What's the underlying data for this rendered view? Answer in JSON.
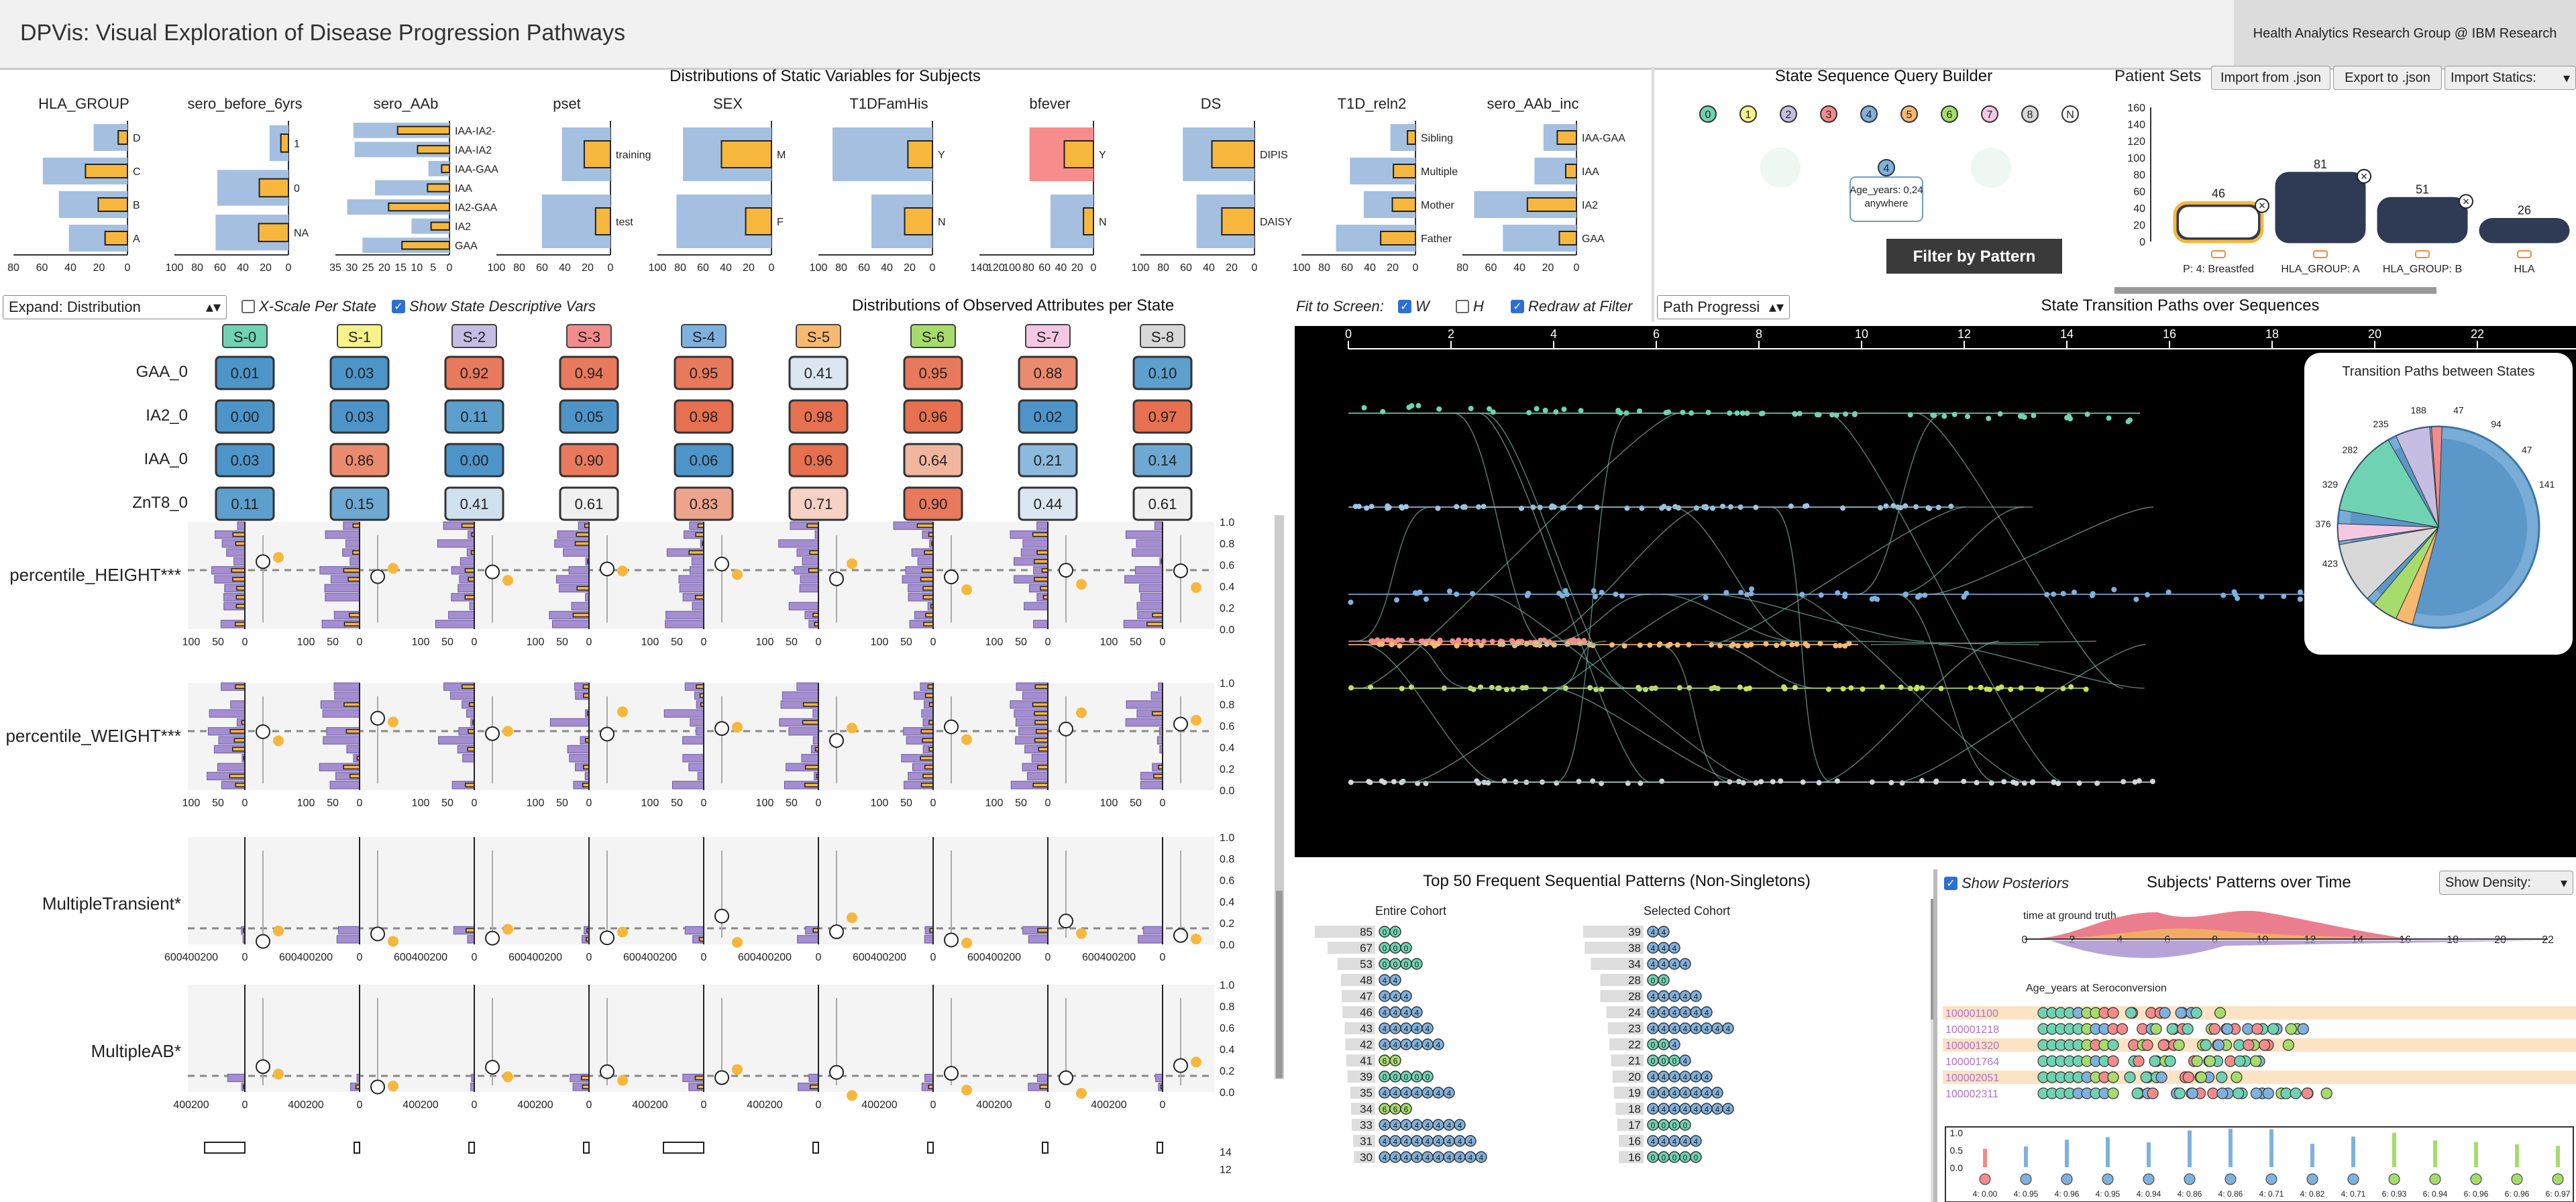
{
  "app": {
    "title": "DPVis: Visual Exploration of Disease Progression Pathways",
    "org": "Health Analytics Research Group @ IBM Research"
  },
  "static_vars": {
    "title": "Distributions of Static Variables for Subjects",
    "vars": [
      {
        "name": "HLA_GROUP",
        "cats": [
          "D",
          "C",
          "B",
          "A"
        ],
        "axis": [
          "80",
          "60",
          "40",
          "20",
          "0"
        ]
      },
      {
        "name": "sero_before_6yrs",
        "cats": [
          "1",
          "0",
          "NA"
        ],
        "axis": [
          "100",
          "80",
          "60",
          "40",
          "20",
          "0"
        ]
      },
      {
        "name": "sero_AAb",
        "cats": [
          "IAA-IA2-",
          "IAA-IA2",
          "IAA-GAA",
          "IAA",
          "IA2-GAA",
          "IA2",
          "GAA"
        ],
        "axis": [
          "35",
          "30",
          "25",
          "20",
          "15",
          "10",
          "5",
          "0"
        ]
      },
      {
        "name": "pset",
        "cats": [
          "training",
          "test"
        ],
        "axis": [
          "100",
          "80",
          "60",
          "40",
          "20",
          "0"
        ]
      },
      {
        "name": "SEX",
        "cats": [
          "M",
          "F"
        ],
        "axis": [
          "100",
          "80",
          "60",
          "40",
          "20",
          "0"
        ]
      },
      {
        "name": "T1DFamHis",
        "cats": [
          "Y",
          "N"
        ],
        "axis": [
          "100",
          "80",
          "60",
          "40",
          "20",
          "0"
        ]
      },
      {
        "name": "bfever",
        "cats": [
          "Y",
          "N"
        ],
        "axis": [
          "140",
          "120",
          "100",
          "80",
          "60",
          "40",
          "20",
          "0"
        ]
      },
      {
        "name": "DS",
        "cats": [
          "DIPIS",
          "DAISY"
        ],
        "axis": [
          "100",
          "80",
          "60",
          "40",
          "20",
          "0"
        ]
      },
      {
        "name": "T1D_reln2",
        "cats": [
          "Sibling",
          "Multiple",
          "Mother",
          "Father"
        ],
        "axis": [
          "100",
          "80",
          "60",
          "40",
          "20",
          "0"
        ]
      },
      {
        "name": "sero_AAb_inc",
        "cats": [
          "IAA-GAA",
          "IAA",
          "IA2",
          "GAA"
        ],
        "axis": [
          "80",
          "60",
          "40",
          "20",
          "0"
        ]
      }
    ]
  },
  "controls": {
    "expand_select": "Expand: Distribution",
    "xscale_label": "X-Scale Per State",
    "xscale_checked": false,
    "show_desc_label": "Show State Descriptive Vars",
    "show_desc_checked": true,
    "observed_title": "Distributions of Observed Attributes per State"
  },
  "states": [
    {
      "label": "S-0",
      "color": "#6fd3b3"
    },
    {
      "label": "S-1",
      "color": "#f7f38a"
    },
    {
      "label": "S-2",
      "color": "#c5bde2"
    },
    {
      "label": "S-3",
      "color": "#f28b8b"
    },
    {
      "label": "S-4",
      "color": "#7fb1de"
    },
    {
      "label": "S-5",
      "color": "#f7b870"
    },
    {
      "label": "S-6",
      "color": "#a6dc6c"
    },
    {
      "label": "S-7",
      "color": "#f5c7e3"
    },
    {
      "label": "S-8",
      "color": "#d8d8d8"
    }
  ],
  "heatmap": {
    "rows": [
      {
        "label": "GAA_0",
        "values": [
          "0.01",
          "0.03",
          "0.92",
          "0.94",
          "0.95",
          "0.41",
          "0.95",
          "0.88",
          "0.10"
        ],
        "colors": [
          "#4d95c9",
          "#4d95c9",
          "#e8795c",
          "#e8795c",
          "#e8795c",
          "#dae6f0",
          "#e8795c",
          "#ea8a6e",
          "#5d9fcd"
        ]
      },
      {
        "label": "IA2_0",
        "values": [
          "0.00",
          "0.03",
          "0.11",
          "0.05",
          "0.98",
          "0.98",
          "0.96",
          "0.02",
          "0.97"
        ],
        "colors": [
          "#4d95c9",
          "#4d95c9",
          "#5d9fcd",
          "#4d95c9",
          "#e6704f",
          "#e6704f",
          "#e6704f",
          "#4d95c9",
          "#e6704f"
        ]
      },
      {
        "label": "IAA_0",
        "values": [
          "0.03",
          "0.86",
          "0.00",
          "0.90",
          "0.06",
          "0.96",
          "0.64",
          "0.21",
          "0.14"
        ],
        "colors": [
          "#4d95c9",
          "#ea8a6e",
          "#4d95c9",
          "#e8795c",
          "#4d95c9",
          "#e6704f",
          "#f1b6a0",
          "#8cb9dc",
          "#6ea9d3"
        ]
      },
      {
        "label": "ZnT8_0",
        "values": [
          "0.11",
          "0.15",
          "0.41",
          "0.61",
          "0.83",
          "0.71",
          "0.90",
          "0.44",
          "0.61"
        ],
        "colors": [
          "#5d9fcd",
          "#6ea9d3",
          "#cfe0ee",
          "#f0f0f0",
          "#eea48c",
          "#f6d2c4",
          "#e8795c",
          "#dae6f0",
          "#f0f0f0"
        ]
      }
    ]
  },
  "descriptive": [
    {
      "label": "percentile_HEIGHT***",
      "axis": [
        "100",
        "50",
        "0"
      ],
      "yticks": [
        "1.0",
        "0.8",
        "0.6",
        "0.4",
        "0.2",
        "0.0"
      ]
    },
    {
      "label": "percentile_WEIGHT***",
      "axis": [
        "100",
        "50",
        "0"
      ],
      "yticks": [
        "1.0",
        "0.8",
        "0.6",
        "0.4",
        "0.2",
        "0.0"
      ]
    },
    {
      "label": "MultipleTransient*",
      "axis": [
        "600400200",
        "0"
      ],
      "yticks": [
        "1.0",
        "0.8",
        "0.6",
        "0.4",
        "0.2",
        "0.0"
      ]
    },
    {
      "label": "MultipleAB*",
      "axis": [
        "400200",
        "0"
      ],
      "yticks": [
        "1.0",
        "0.8",
        "0.6",
        "0.4",
        "0.2",
        "0.0"
      ]
    }
  ],
  "bottom_yticks": [
    "14",
    "12"
  ],
  "query": {
    "title": "State Sequence Query Builder",
    "state_nums": [
      "0",
      "1",
      "2",
      "3",
      "4",
      "5",
      "6",
      "7",
      "8",
      "N"
    ],
    "node_label": "4",
    "node_text1": "Age_years: 0,24",
    "node_text2": "anywhere",
    "filter_button": "Filter by Pattern"
  },
  "patient_sets": {
    "title": "Patient Sets",
    "import_json": "Import from .json",
    "export_json": "Export to .json",
    "import_statics": "Import Statics:",
    "yticks": [
      "160",
      "140",
      "120",
      "100",
      "80",
      "60",
      "40",
      "20",
      "0"
    ],
    "sets": [
      {
        "count": "46",
        "label": "P: 4: Breastfed",
        "value": 46,
        "selected": true
      },
      {
        "count": "81",
        "label": "HLA_GROUP: A",
        "value": 81,
        "selected": false
      },
      {
        "count": "51",
        "label": "HLA_GROUP: B",
        "value": 51,
        "selected": false
      },
      {
        "count": "26",
        "label": "HLA",
        "value": 26,
        "selected": false
      }
    ]
  },
  "paths_panel": {
    "fit_label": "Fit to Screen:",
    "w_label": "W",
    "w_checked": true,
    "h_label": "H",
    "h_checked": false,
    "redraw_label": "Redraw at Filter",
    "redraw_checked": true,
    "select": "Path Progressi",
    "title": "State Transition Paths over Sequences",
    "axis": [
      "0",
      "2",
      "4",
      "6",
      "8",
      "10",
      "12",
      "14",
      "16",
      "18",
      "20",
      "22"
    ],
    "chord_title": "Transition Paths between States",
    "chord_ticks": [
      "423",
      "376",
      "329",
      "282",
      "235",
      "188",
      "47",
      "94",
      "47",
      "141"
    ]
  },
  "patterns": {
    "title": "Top 50 Frequent Sequential Patterns (Non-Singletons)",
    "entire_label": "Entire Cohort",
    "selected_label": "Selected Cohort",
    "entire": [
      {
        "count": "85",
        "seq": "0,0"
      },
      {
        "count": "67",
        "seq": "0,0,0"
      },
      {
        "count": "53",
        "seq": "0,0,0,0"
      },
      {
        "count": "48",
        "seq": "4,4"
      },
      {
        "count": "47",
        "seq": "4,4,4"
      },
      {
        "count": "46",
        "seq": "4,4,4,4"
      },
      {
        "count": "43",
        "seq": "4,4,4,4,4"
      },
      {
        "count": "42",
        "seq": "4,4,4,4,4,4"
      },
      {
        "count": "41",
        "seq": "6,6"
      },
      {
        "count": "39",
        "seq": "0,0,0,0,0"
      },
      {
        "count": "35",
        "seq": "4,4,4,4,4,4,4"
      },
      {
        "count": "34",
        "seq": "6,6,6"
      },
      {
        "count": "33",
        "seq": "4,4,4,4,4,4,4,4"
      },
      {
        "count": "31",
        "seq": "4,4,4,4,4,4,4,4,4"
      },
      {
        "count": "30",
        "seq": "4,4,4,4,4,4,4,4,4,4"
      }
    ],
    "selected": [
      {
        "count": "39",
        "seq": "4,4"
      },
      {
        "count": "38",
        "seq": "4,4,4"
      },
      {
        "count": "34",
        "seq": "4,4,4,4"
      },
      {
        "count": "28",
        "seq": "0,0"
      },
      {
        "count": "28",
        "seq": "4,4,4,4,4"
      },
      {
        "count": "24",
        "seq": "4,4,4,4,4,4"
      },
      {
        "count": "23",
        "seq": "4,4,4,4,4,4,4,4"
      },
      {
        "count": "22",
        "seq": "0,0,4"
      },
      {
        "count": "21",
        "seq": "0,0,0,4"
      },
      {
        "count": "20",
        "seq": "4,4,4,4,4,4"
      },
      {
        "count": "19",
        "seq": "4,4,4,4,4,4,4"
      },
      {
        "count": "18",
        "seq": "4,4,4,4,4,4,4,4"
      },
      {
        "count": "17",
        "seq": "0,0,0,0"
      },
      {
        "count": "16",
        "seq": "4,4,4,4,4"
      },
      {
        "count": "16",
        "seq": "0,0,0,0,0"
      }
    ]
  },
  "subjects": {
    "show_post_label": "Show Posteriors",
    "show_post_checked": true,
    "title": "Subjects' Patterns over Time",
    "density_label": "Show Density:",
    "time_label": "time at ground truth",
    "age_label": "Age_years at Seroconversion",
    "axis": [
      "0",
      "2",
      "4",
      "6",
      "8",
      "10",
      "12",
      "14",
      "16",
      "18",
      "20",
      "22"
    ],
    "ids": [
      "100001100",
      "100001218",
      "100001320",
      "100001764",
      "100002051",
      "100002311"
    ],
    "post_yticks": [
      "1.0",
      "0.5",
      "0.0"
    ],
    "post_labels": [
      "4: 0.00",
      "4: 0.95",
      "4: 0.96",
      "4: 0.95",
      "4: 0.94",
      "4: 0.86",
      "4: 0.86",
      "4: 0.71",
      "4: 0.82",
      "4: 0.71",
      "6: 0.93",
      "6: 0.94",
      "6: 0.96",
      "6: 0.96",
      "6: 0.97"
    ]
  }
}
